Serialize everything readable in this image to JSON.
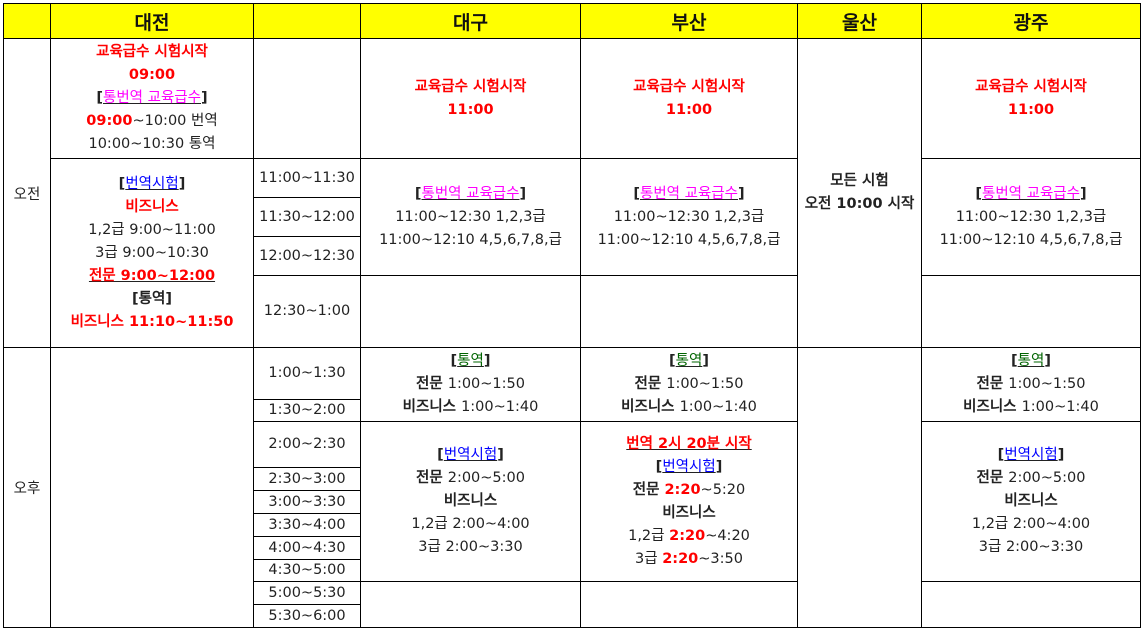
{
  "colors": {
    "header_bg": "#ffff00",
    "red": "#ff0000",
    "magenta": "#ff00ff",
    "blue": "#0000ff",
    "green": "#006400",
    "text": "#222222"
  },
  "header": {
    "corner": "",
    "daejeon": "대전",
    "time": "",
    "daegu": "대구",
    "busan": "부산",
    "ulsan": "울산",
    "gwangju": "광주"
  },
  "periods": {
    "am": "오전",
    "pm": "오후"
  },
  "times": [
    "11:00~11:30",
    "11:30~12:00",
    "12:00~12:30",
    "12:30~1:00",
    "1:00~1:30",
    "1:30~2:00",
    "2:00~2:30",
    "2:30~3:00",
    "3:00~3:30",
    "3:30~4:00",
    "4:00~4:30",
    "4:30~5:00",
    "5:00~5:30",
    "5:30~6:00"
  ],
  "cells": {
    "daejeon_edu": [
      {
        "s": [
          {
            "t": "교육급수 시험시작",
            "c": "red",
            "b": true
          }
        ]
      },
      {
        "s": [
          {
            "t": "09:00",
            "c": "red",
            "b": true
          }
        ]
      },
      {
        "u": true,
        "s": [
          {
            "t": "[",
            "b": true
          },
          {
            "t": "통번역 교육급수",
            "c": "magenta"
          },
          {
            "t": "]",
            "b": true
          }
        ]
      },
      {
        "s": [
          {
            "t": "09:00",
            "c": "red",
            "b": true
          },
          {
            "t": "~10:00 번역"
          }
        ]
      },
      {
        "s": [
          {
            "t": "10:00~10:30 통역"
          }
        ]
      }
    ],
    "daejeon_am": [
      {
        "u": true,
        "s": [
          {
            "t": "[",
            "b": true
          },
          {
            "t": "번역시험",
            "c": "blue"
          },
          {
            "t": "]",
            "b": true
          }
        ]
      },
      {
        "s": [
          {
            "t": "비즈니스",
            "c": "red",
            "b": true
          }
        ]
      },
      {
        "s": [
          {
            "t": "1,2급 9:00~11:00"
          }
        ]
      },
      {
        "s": [
          {
            "t": "3급 9:00~10:30"
          }
        ]
      },
      {
        "u": true,
        "s": [
          {
            "t": "전문 9:00~12:00",
            "c": "red",
            "b": true
          }
        ]
      },
      {
        "s": [
          {
            "t": "[통역]",
            "b": true
          }
        ]
      },
      {
        "s": [
          {
            "t": "비즈니스 11:10~11:50",
            "c": "red",
            "b": true
          }
        ]
      }
    ],
    "edu_start": [
      {
        "s": [
          {
            "t": "교육급수 시험시작",
            "c": "red",
            "b": true
          }
        ]
      },
      {
        "s": [
          {
            "t": "11:00",
            "c": "red",
            "b": true
          }
        ]
      }
    ],
    "edu_interp": [
      {
        "u": true,
        "s": [
          {
            "t": "[",
            "b": true
          },
          {
            "t": "통번역 교육급수",
            "c": "magenta"
          },
          {
            "t": "]",
            "b": true
          }
        ]
      },
      {
        "s": [
          {
            "t": "11:00~12:30 1,2,3급"
          }
        ]
      },
      {
        "s": [
          {
            "t": "11:00~12:10 4,5,6,7,8,급"
          }
        ]
      }
    ],
    "interp": [
      {
        "u": true,
        "s": [
          {
            "t": "[",
            "b": true
          },
          {
            "t": "통역",
            "c": "green"
          },
          {
            "t": "]",
            "b": true
          }
        ]
      },
      {
        "s": [
          {
            "t": "전문 ",
            "b": true
          },
          {
            "t": "1:00~1:50"
          }
        ]
      },
      {
        "s": [
          {
            "t": "비즈니스 ",
            "b": true
          },
          {
            "t": "1:00~1:40"
          }
        ]
      }
    ],
    "trans": [
      {
        "u": true,
        "s": [
          {
            "t": "[",
            "b": true
          },
          {
            "t": "번역시험",
            "c": "blue"
          },
          {
            "t": "]",
            "b": true
          }
        ]
      },
      {
        "s": [
          {
            "t": "전문 ",
            "b": true
          },
          {
            "t": "2:00~5:00"
          }
        ]
      },
      {
        "s": [
          {
            "t": "비즈니스",
            "b": true
          }
        ]
      },
      {
        "s": [
          {
            "t": "1,2급 2:00~4:00"
          }
        ]
      },
      {
        "s": [
          {
            "t": "3급 2:00~3:30"
          }
        ]
      }
    ],
    "busan_trans": [
      {
        "u": true,
        "s": [
          {
            "t": "번역 2시 20분 시작",
            "c": "red",
            "b": true
          }
        ]
      },
      {
        "u": true,
        "s": [
          {
            "t": "[",
            "b": true
          },
          {
            "t": "번역시험",
            "c": "blue"
          },
          {
            "t": "]",
            "b": true
          }
        ]
      },
      {
        "s": [
          {
            "t": "전문 ",
            "b": true
          },
          {
            "t": "2:20",
            "c": "red",
            "b": true
          },
          {
            "t": "~5:20"
          }
        ]
      },
      {
        "s": [
          {
            "t": "비즈니스",
            "b": true
          }
        ]
      },
      {
        "s": [
          {
            "t": "1,2급 "
          },
          {
            "t": "2:20",
            "c": "red",
            "b": true
          },
          {
            "t": "~4:20"
          }
        ]
      },
      {
        "s": [
          {
            "t": "3급 "
          },
          {
            "t": "2:20",
            "c": "red",
            "b": true
          },
          {
            "t": "~3:50"
          }
        ]
      }
    ],
    "ulsan_am": [
      {
        "s": [
          {
            "t": "모든 시험",
            "b": true
          }
        ]
      },
      {
        "s": [
          {
            "t": "오전 ",
            "b": true
          },
          {
            "t": "10:00",
            "b": true
          },
          {
            "t": " 시작",
            "b": true
          }
        ]
      }
    ]
  }
}
